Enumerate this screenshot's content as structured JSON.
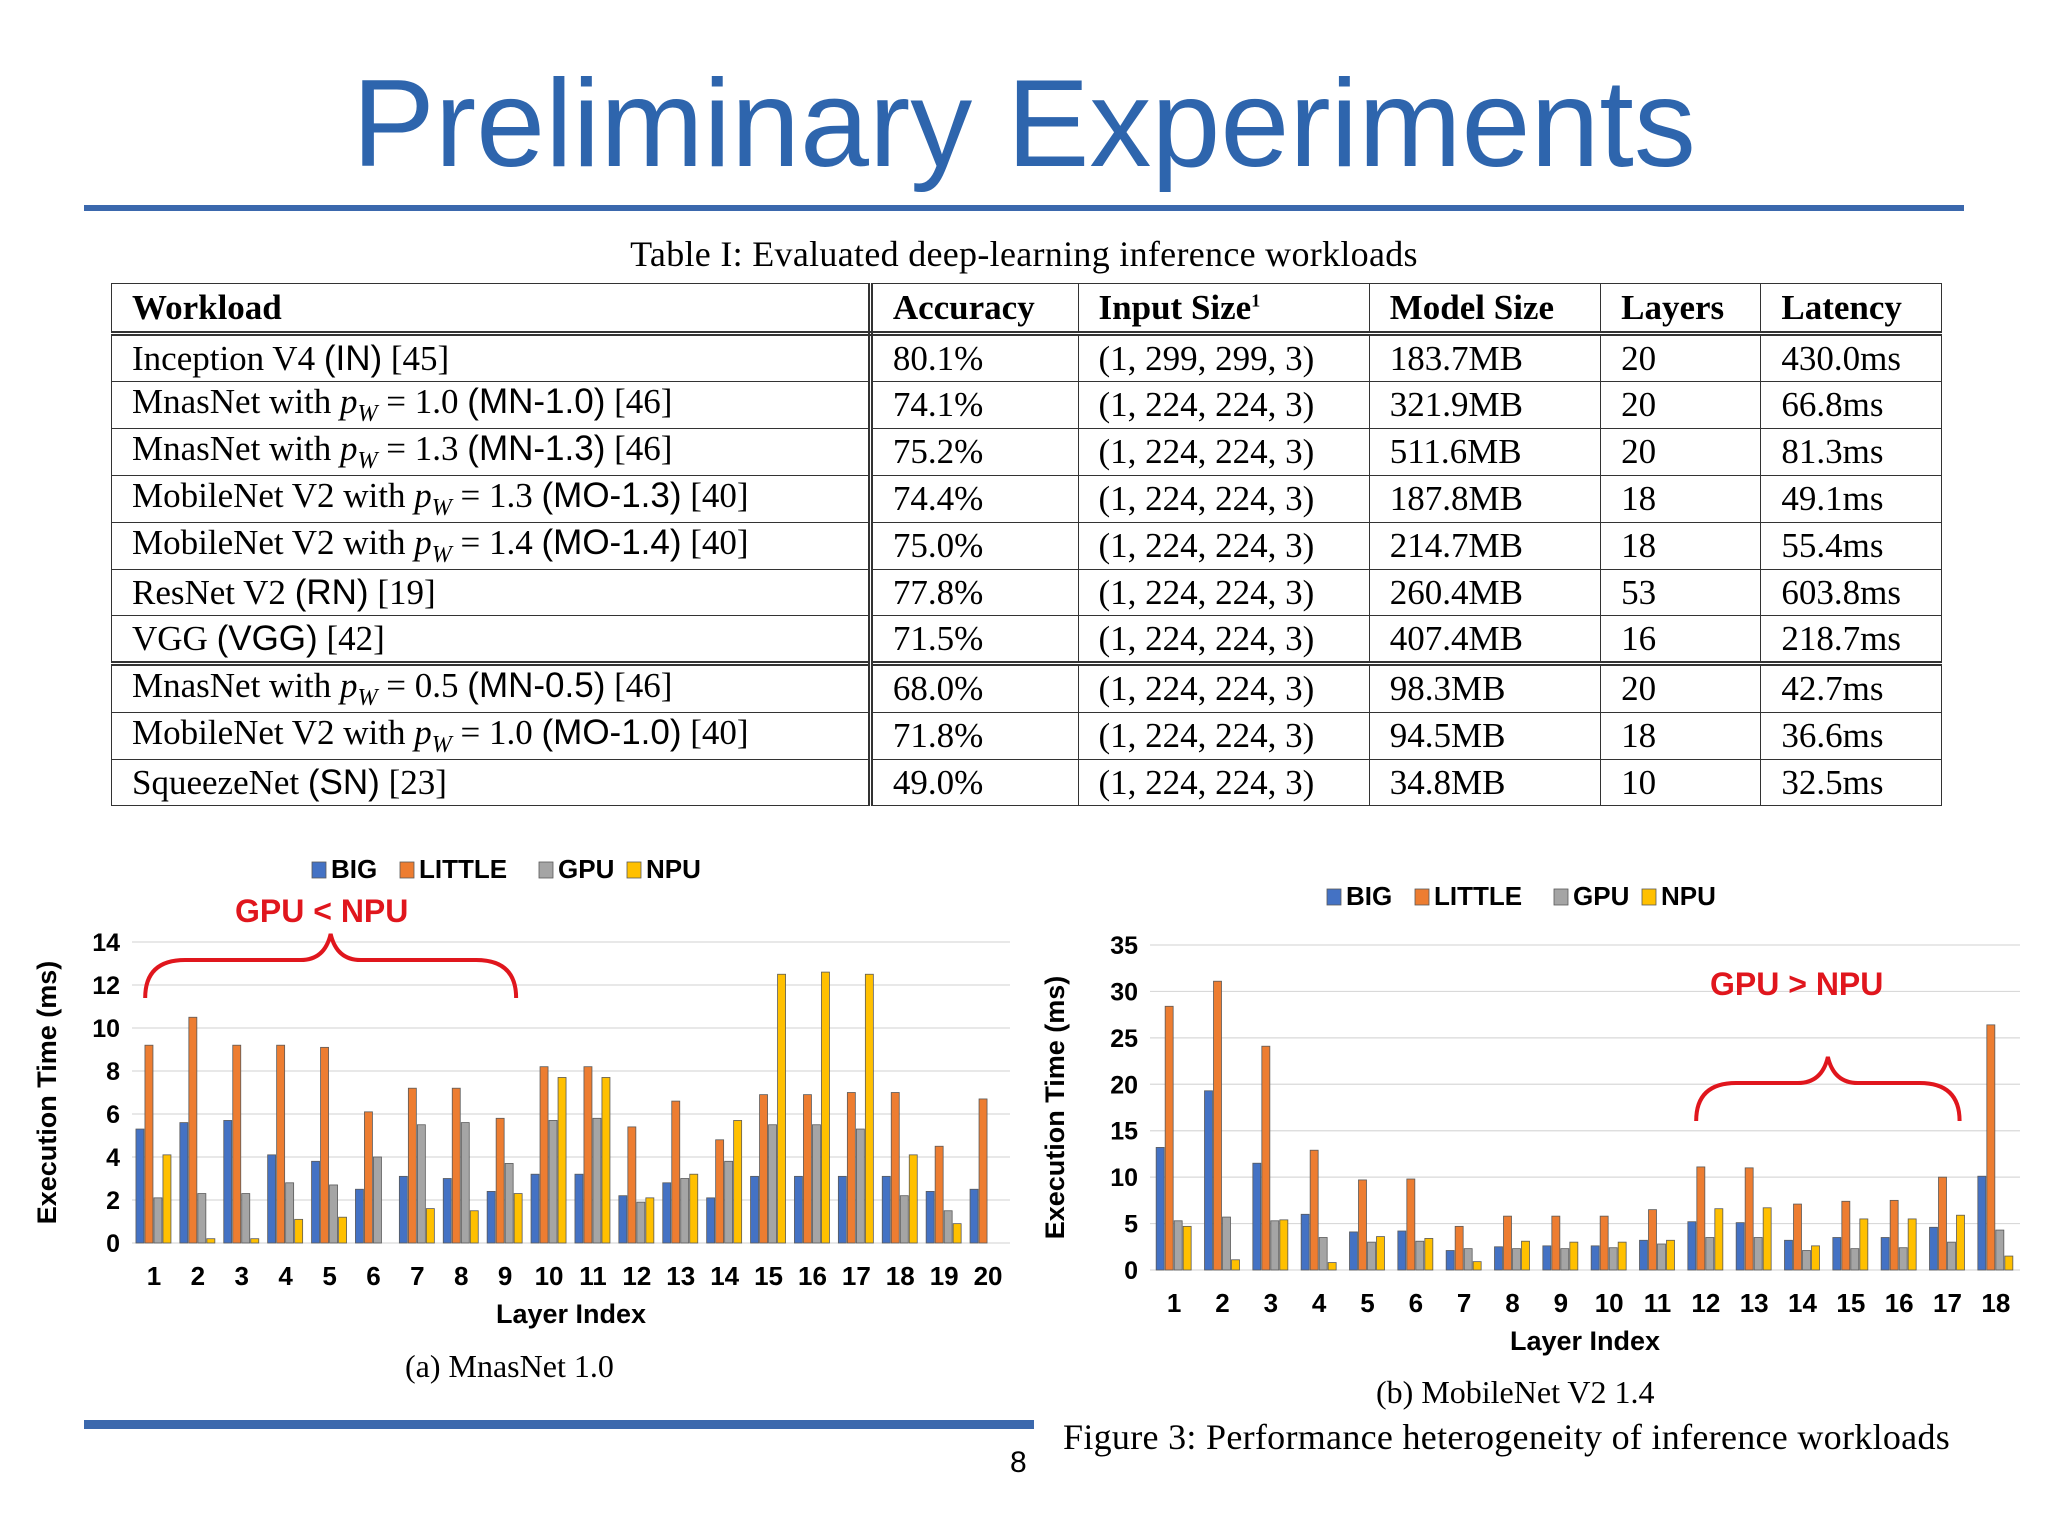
{
  "slide_title": "Preliminary Experiments",
  "table": {
    "caption": "Table I: Evaluated deep-learning inference workloads",
    "headers": {
      "workload": "Workload",
      "accuracy": "Accuracy",
      "input_size": "Input Size",
      "input_size_footnote": "1",
      "model_size": "Model Size",
      "layers": "Layers",
      "latency": "Latency"
    },
    "rows": [
      {
        "name": "Inception V4",
        "pw": "",
        "abbr": "(IN)",
        "ref": "[45]",
        "accuracy": "80.1%",
        "input_size": "(1, 299, 299, 3)",
        "model_size": "183.7MB",
        "layers": "20",
        "latency": "430.0ms"
      },
      {
        "name": "MnasNet with",
        "pw": "= 1.0",
        "abbr": "(MN-1.0)",
        "ref": "[46]",
        "accuracy": "74.1%",
        "input_size": "(1, 224, 224, 3)",
        "model_size": "321.9MB",
        "layers": "20",
        "latency": "66.8ms"
      },
      {
        "name": "MnasNet with",
        "pw": "= 1.3",
        "abbr": "(MN-1.3)",
        "ref": "[46]",
        "accuracy": "75.2%",
        "input_size": "(1, 224, 224, 3)",
        "model_size": "511.6MB",
        "layers": "20",
        "latency": "81.3ms"
      },
      {
        "name": "MobileNet V2 with",
        "pw": "= 1.3",
        "abbr": "(MO-1.3)",
        "ref": "[40]",
        "accuracy": "74.4%",
        "input_size": "(1, 224, 224, 3)",
        "model_size": "187.8MB",
        "layers": "18",
        "latency": "49.1ms"
      },
      {
        "name": "MobileNet V2 with",
        "pw": "= 1.4",
        "abbr": "(MO-1.4)",
        "ref": "[40]",
        "accuracy": "75.0%",
        "input_size": "(1, 224, 224, 3)",
        "model_size": "214.7MB",
        "layers": "18",
        "latency": "55.4ms"
      },
      {
        "name": "ResNet V2",
        "pw": "",
        "abbr": "(RN)",
        "ref": "[19]",
        "accuracy": "77.8%",
        "input_size": "(1, 224, 224, 3)",
        "model_size": "260.4MB",
        "layers": "53",
        "latency": "603.8ms"
      },
      {
        "name": "VGG",
        "pw": "",
        "abbr": "(VGG)",
        "ref": "[42]",
        "accuracy": "71.5%",
        "input_size": "(1, 224, 224, 3)",
        "model_size": "407.4MB",
        "layers": "16",
        "latency": "218.7ms"
      },
      {
        "name": "MnasNet with",
        "pw": "= 0.5",
        "abbr": "(MN-0.5)",
        "ref": "[46]",
        "accuracy": "68.0%",
        "input_size": "(1, 224, 224, 3)",
        "model_size": "98.3MB",
        "layers": "20",
        "latency": "42.7ms"
      },
      {
        "name": "MobileNet V2 with",
        "pw": "= 1.0",
        "abbr": "(MO-1.0)",
        "ref": "[40]",
        "accuracy": "71.8%",
        "input_size": "(1, 224, 224, 3)",
        "model_size": "94.5MB",
        "layers": "18",
        "latency": "36.6ms"
      },
      {
        "name": "SqueezeNet",
        "pw": "",
        "abbr": "(SN)",
        "ref": "[23]",
        "accuracy": "49.0%",
        "input_size": "(1, 224, 224, 3)",
        "model_size": "34.8MB",
        "layers": "10",
        "latency": "32.5ms"
      }
    ],
    "group_break_before_row": 7
  },
  "chart_data": [
    {
      "type": "bar",
      "caption": "(a) MnasNet 1.0",
      "xlabel": "Layer Index",
      "ylabel": "Execution Time (ms)",
      "ylim": [
        0,
        14
      ],
      "yticks": [
        0,
        2,
        4,
        6,
        8,
        10,
        12,
        14
      ],
      "grid": true,
      "legend_position": "top",
      "annotation": "GPU <  NPU",
      "annotation_span": [
        1,
        9
      ],
      "categories": [
        "1",
        "2",
        "3",
        "4",
        "5",
        "6",
        "7",
        "8",
        "9",
        "10",
        "11",
        "12",
        "13",
        "14",
        "15",
        "16",
        "17",
        "18",
        "19",
        "20"
      ],
      "series": [
        {
          "name": "BIG",
          "color": "#4472c4",
          "values": [
            5.3,
            5.6,
            5.7,
            4.1,
            3.8,
            2.5,
            3.1,
            3.0,
            2.4,
            3.2,
            3.2,
            2.2,
            2.8,
            2.1,
            3.1,
            3.1,
            3.1,
            3.1,
            2.4,
            2.5
          ]
        },
        {
          "name": "LITTLE",
          "color": "#ed7d31",
          "values": [
            9.2,
            10.5,
            9.2,
            9.2,
            9.1,
            6.1,
            7.2,
            7.2,
            5.8,
            8.2,
            8.2,
            5.4,
            6.6,
            4.8,
            6.9,
            6.9,
            7.0,
            7.0,
            4.5,
            6.7
          ]
        },
        {
          "name": "GPU",
          "color": "#a5a5a5",
          "values": [
            2.1,
            2.3,
            2.3,
            2.8,
            2.7,
            4.0,
            5.5,
            5.6,
            3.7,
            5.7,
            5.8,
            1.9,
            3.0,
            3.8,
            5.5,
            5.5,
            5.3,
            2.2,
            1.5,
            0
          ]
        },
        {
          "name": "NPU",
          "color": "#ffc000",
          "values": [
            4.1,
            0.2,
            0.2,
            1.1,
            1.2,
            0,
            1.6,
            1.5,
            2.3,
            7.7,
            7.7,
            2.1,
            3.2,
            5.7,
            12.5,
            12.6,
            12.5,
            4.1,
            0.9,
            0
          ]
        }
      ]
    },
    {
      "type": "bar",
      "caption": "(b) MobileNet V2 1.4",
      "xlabel": "Layer Index",
      "ylabel": "Execution Time (ms)",
      "ylim": [
        0,
        35
      ],
      "yticks": [
        0,
        5,
        10,
        15,
        20,
        25,
        30,
        35
      ],
      "grid": true,
      "legend_position": "top",
      "annotation": "GPU >  NPU",
      "annotation_span": [
        12,
        17
      ],
      "categories": [
        "1",
        "2",
        "3",
        "4",
        "5",
        "6",
        "7",
        "8",
        "9",
        "10",
        "11",
        "12",
        "13",
        "14",
        "15",
        "16",
        "17",
        "18"
      ],
      "series": [
        {
          "name": "BIG",
          "color": "#4472c4",
          "values": [
            13.2,
            19.3,
            11.5,
            6.0,
            4.1,
            4.2,
            2.1,
            2.5,
            2.6,
            2.6,
            3.2,
            5.2,
            5.1,
            3.2,
            3.5,
            3.5,
            4.6,
            10.1
          ]
        },
        {
          "name": "LITTLE",
          "color": "#ed7d31",
          "values": [
            28.4,
            31.1,
            24.1,
            12.9,
            9.7,
            9.8,
            4.7,
            5.8,
            5.8,
            5.8,
            6.5,
            11.1,
            11.0,
            7.1,
            7.4,
            7.5,
            10.0,
            26.4
          ]
        },
        {
          "name": "GPU",
          "color": "#a5a5a5",
          "values": [
            5.3,
            5.7,
            5.3,
            3.5,
            3.0,
            3.1,
            2.3,
            2.3,
            2.3,
            2.4,
            2.8,
            3.5,
            3.5,
            2.1,
            2.3,
            2.4,
            3.0,
            4.3
          ]
        },
        {
          "name": "NPU",
          "color": "#ffc000",
          "values": [
            4.7,
            1.1,
            5.4,
            0.8,
            3.6,
            3.4,
            0.9,
            3.1,
            3.0,
            3.0,
            3.2,
            6.6,
            6.7,
            2.6,
            5.5,
            5.5,
            5.9,
            1.5
          ]
        }
      ]
    }
  ],
  "figure_caption": "Figure 3: Performance heterogeneity of inference workloads",
  "page_number": "8"
}
